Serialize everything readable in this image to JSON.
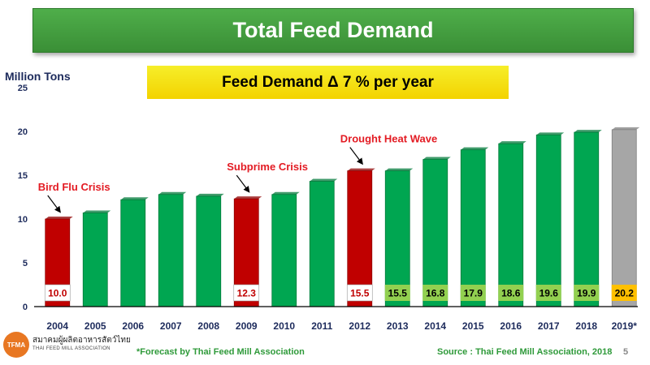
{
  "header": {
    "title": "Total Feed Demand",
    "subtitle": "Feed Demand Δ 7 % per year"
  },
  "colors": {
    "green_bar": "#00a651",
    "red_bar": "#c00000",
    "gray_bar": "#a6a6a6",
    "label_green": "#92d050",
    "label_yellow": "#ffc000",
    "annotation_red": "#e31b23",
    "title_green": "#43a03e",
    "footer_green": "#2f9a3a"
  },
  "chart_data": {
    "type": "bar",
    "ylabel": "Million Tons",
    "ylim": [
      0,
      25
    ],
    "yticks": [
      0,
      5,
      10,
      15,
      20,
      25
    ],
    "grid": false,
    "categories": [
      "2004",
      "2005",
      "2006",
      "2007",
      "2008",
      "2009",
      "2010",
      "2011",
      "2012",
      "2013",
      "2014",
      "2015",
      "2016",
      "2017",
      "2018",
      "2019*"
    ],
    "values": [
      10.0,
      10.7,
      12.2,
      12.8,
      12.6,
      12.3,
      12.8,
      14.3,
      15.5,
      15.5,
      16.8,
      17.9,
      18.6,
      19.6,
      19.9,
      20.2
    ],
    "bar_colors": [
      "red",
      "green",
      "green",
      "green",
      "green",
      "red",
      "green",
      "green",
      "red",
      "green",
      "green",
      "green",
      "green",
      "green",
      "green",
      "gray"
    ],
    "data_labels": [
      {
        "index": 0,
        "text": "10.0",
        "style": "white"
      },
      {
        "index": 5,
        "text": "12.3",
        "style": "white"
      },
      {
        "index": 8,
        "text": "15.5",
        "style": "white"
      },
      {
        "index": 9,
        "text": "15.5",
        "style": "green"
      },
      {
        "index": 10,
        "text": "16.8",
        "style": "green"
      },
      {
        "index": 11,
        "text": "17.9",
        "style": "green"
      },
      {
        "index": 12,
        "text": "18.6",
        "style": "green"
      },
      {
        "index": 13,
        "text": "19.6",
        "style": "green"
      },
      {
        "index": 14,
        "text": "19.9",
        "style": "green"
      },
      {
        "index": 15,
        "text": "20.2",
        "style": "yellow"
      }
    ],
    "annotations": [
      {
        "index": 0,
        "text": "Bird Flu Crisis"
      },
      {
        "index": 5,
        "text": "Subprime Crisis"
      },
      {
        "index": 8,
        "text": "Drought Heat Wave"
      }
    ]
  },
  "footer": {
    "footnote": "*Forecast by Thai Feed Mill Association",
    "source": "Source : Thai Feed Mill Association, 2018",
    "page": "5",
    "logo_abbr": "TFMA",
    "logo_thai": "สมาคมผู้ผลิตอาหารสัตว์ไทย",
    "logo_en": "THAI FEED MILL ASSOCIATION"
  }
}
